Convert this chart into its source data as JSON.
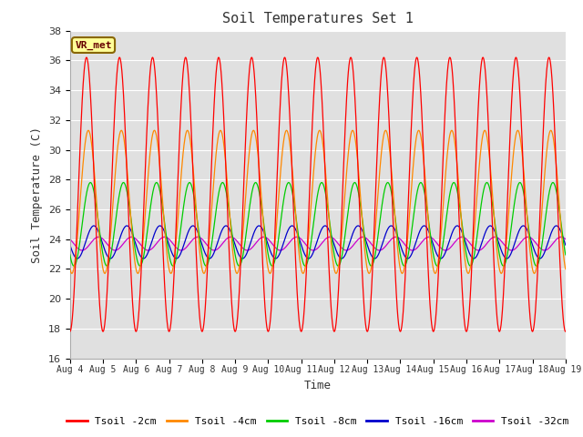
{
  "title": "Soil Temperatures Set 1",
  "xlabel": "Time",
  "ylabel": "Soil Temperature (C)",
  "ylim": [
    16,
    38
  ],
  "yticks": [
    16,
    18,
    20,
    22,
    24,
    26,
    28,
    30,
    32,
    34,
    36,
    38
  ],
  "x_tick_labels": [
    "Aug 4",
    "Aug 5",
    "Aug 6",
    "Aug 7",
    "Aug 8",
    "Aug 9",
    "Aug 10",
    "Aug 11",
    "Aug 12",
    "Aug 13",
    "Aug 14",
    "Aug 15",
    "Aug 16",
    "Aug 17",
    "Aug 18",
    "Aug 19"
  ],
  "n_points": 1500,
  "series": [
    {
      "label": "Tsoil -2cm",
      "color": "#ff0000",
      "mean": 27.0,
      "amplitude": 9.2,
      "phase_shift": 0.0,
      "zorder": 5
    },
    {
      "label": "Tsoil -4cm",
      "color": "#ff8800",
      "mean": 26.5,
      "amplitude": 4.8,
      "phase_shift": 0.35,
      "zorder": 4
    },
    {
      "label": "Tsoil -8cm",
      "color": "#00cc00",
      "mean": 25.0,
      "amplitude": 2.8,
      "phase_shift": 0.75,
      "zorder": 3
    },
    {
      "label": "Tsoil -16cm",
      "color": "#0000cc",
      "mean": 23.8,
      "amplitude": 1.1,
      "phase_shift": 1.4,
      "zorder": 2
    },
    {
      "label": "Tsoil -32cm",
      "color": "#cc00cc",
      "mean": 23.7,
      "amplitude": 0.45,
      "phase_shift": 2.3,
      "zorder": 1
    }
  ],
  "annotation": "VR_met",
  "bg_color": "#e0e0e0",
  "fig_bg_color": "#ffffff"
}
